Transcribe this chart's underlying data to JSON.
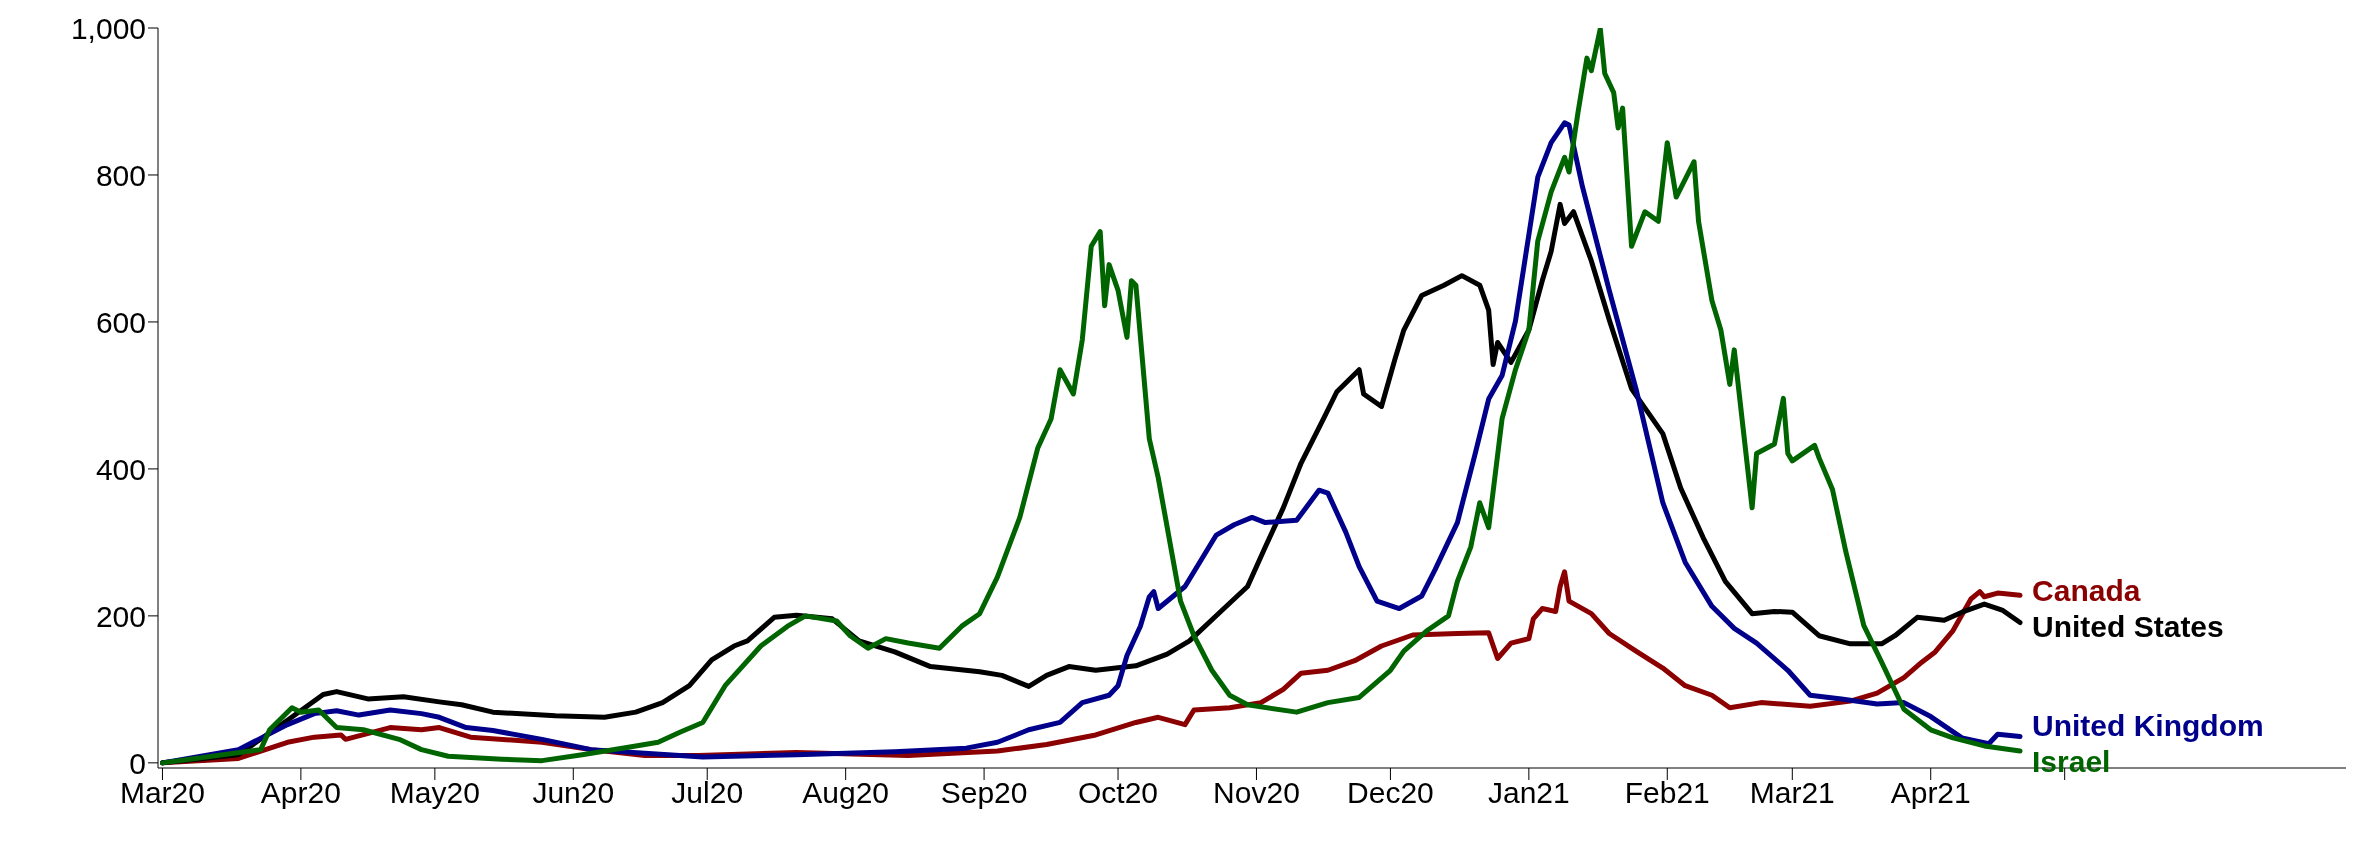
{
  "chart_data": {
    "type": "line",
    "xlim": [
      "2020-02-29",
      "2021-07-03"
    ],
    "xticks": [
      {
        "value": "2020-03-01",
        "label": "Mar20"
      },
      {
        "value": "2020-04-01",
        "label": "Apr20"
      },
      {
        "value": "2020-05-01",
        "label": "May20"
      },
      {
        "value": "2020-06-01",
        "label": "Jun20"
      },
      {
        "value": "2020-07-01",
        "label": "Jul20"
      },
      {
        "value": "2020-08-01",
        "label": "Aug20"
      },
      {
        "value": "2020-09-01",
        "label": "Sep20"
      },
      {
        "value": "2020-10-01",
        "label": "Oct20"
      },
      {
        "value": "2020-11-01",
        "label": "Nov20"
      },
      {
        "value": "2020-12-01",
        "label": "Dec20"
      },
      {
        "value": "2021-01-01",
        "label": "Jan21"
      },
      {
        "value": "2021-02-01",
        "label": "Feb21"
      },
      {
        "value": "2021-03-01",
        "label": "Mar21"
      },
      {
        "value": "2021-04-01",
        "label": "Apr21"
      },
      {
        "value": "2021-05-01",
        "label": null
      }
    ],
    "ylim": [
      -7,
      1000
    ],
    "yticks": [
      0,
      200,
      400,
      600,
      800,
      {
        "value": 1000,
        "label": "1,000"
      }
    ],
    "grid": false,
    "legend": false,
    "series": [
      {
        "name": "Canada",
        "color": "#8b0000",
        "x": [
          "2020-03-01",
          "2020-03-18",
          "2020-03-29",
          "2020-04-04",
          "2020-04-10",
          "2020-04-11",
          "2020-04-21",
          "2020-04-28",
          "2020-05-02",
          "2020-05-09",
          "2020-05-25",
          "2020-06-05",
          "2020-06-17",
          "2020-06-29",
          "2020-07-21",
          "2020-08-15",
          "2020-09-04",
          "2020-09-15",
          "2020-09-26",
          "2020-10-05",
          "2020-10-10",
          "2020-10-16",
          "2020-10-18",
          "2020-10-26",
          "2020-11-02",
          "2020-11-07",
          "2020-11-11",
          "2020-11-17",
          "2020-11-23",
          "2020-11-29",
          "2020-12-06",
          "2020-12-16",
          "2020-12-23",
          "2020-12-25",
          "2020-12-28",
          "2021-01-01",
          "2021-01-02",
          "2021-01-04",
          "2021-01-07",
          "2021-01-08",
          "2021-01-09",
          "2021-01-10",
          "2021-01-15",
          "2021-01-19",
          "2021-01-25",
          "2021-01-31",
          "2021-02-05",
          "2021-02-11",
          "2021-02-15",
          "2021-02-22",
          "2021-03-05",
          "2021-03-14",
          "2021-03-20",
          "2021-03-26",
          "2021-03-30",
          "2021-04-02",
          "2021-04-06",
          "2021-04-10",
          "2021-04-12",
          "2021-04-13",
          "2021-04-16",
          "2021-04-21"
        ],
        "values": [
          0,
          6,
          28,
          35,
          38,
          32,
          48,
          45,
          48,
          35,
          28,
          18,
          10,
          10,
          14,
          10,
          16,
          25,
          38,
          55,
          62,
          52,
          72,
          75,
          82,
          100,
          122,
          126,
          139,
          159,
          174,
          176,
          177,
          142,
          163,
          169,
          196,
          210,
          206,
          240,
          260,
          220,
          203,
          176,
          152,
          129,
          105,
          92,
          75,
          82,
          77,
          84,
          95,
          116,
          137,
          151,
          180,
          223,
          233,
          226,
          231,
          228
        ]
      },
      {
        "name": "United States",
        "color": "#000000",
        "x": [
          "2020-03-01",
          "2020-03-18",
          "2020-03-29",
          "2020-04-06",
          "2020-04-09",
          "2020-04-16",
          "2020-04-24",
          "2020-05-02",
          "2020-05-07",
          "2020-05-14",
          "2020-05-28",
          "2020-06-08",
          "2020-06-15",
          "2020-06-21",
          "2020-06-27",
          "2020-07-02",
          "2020-07-07",
          "2020-07-10",
          "2020-07-16",
          "2020-07-21",
          "2020-07-29",
          "2020-08-04",
          "2020-08-12",
          "2020-08-20",
          "2020-08-31",
          "2020-09-05",
          "2020-09-11",
          "2020-09-15",
          "2020-09-20",
          "2020-09-26",
          "2020-10-05",
          "2020-10-12",
          "2020-10-17",
          "2020-10-24",
          "2020-10-30",
          "2020-11-03",
          "2020-11-07",
          "2020-11-11",
          "2020-11-16",
          "2020-11-19",
          "2020-11-24",
          "2020-11-25",
          "2020-11-29",
          "2020-12-02",
          "2020-12-04",
          "2020-12-08",
          "2020-12-13",
          "2020-12-17",
          "2020-12-21",
          "2020-12-23",
          "2020-12-24",
          "2020-12-25",
          "2020-12-28",
          "2021-01-01",
          "2021-01-04",
          "2021-01-06",
          "2021-01-08",
          "2021-01-09",
          "2021-01-11",
          "2021-01-15",
          "2021-01-19",
          "2021-01-24",
          "2021-01-31",
          "2021-02-04",
          "2021-02-09",
          "2021-02-14",
          "2021-02-20",
          "2021-02-25",
          "2021-03-01",
          "2021-03-07",
          "2021-03-14",
          "2021-03-21",
          "2021-03-24",
          "2021-03-29",
          "2021-04-04",
          "2021-04-08",
          "2021-04-13",
          "2021-04-17",
          "2021-04-21"
        ],
        "values": [
          0,
          11,
          58,
          93,
          97,
          87,
          90,
          83,
          79,
          69,
          64,
          62,
          69,
          82,
          105,
          140,
          159,
          166,
          198,
          201,
          196,
          166,
          151,
          131,
          124,
          119,
          104,
          119,
          131,
          126,
          132,
          148,
          166,
          206,
          240,
          294,
          347,
          408,
          468,
          505,
          535,
          502,
          485,
          549,
          589,
          636,
          650,
          663,
          650,
          616,
          542,
          572,
          545,
          589,
          656,
          696,
          760,
          734,
          750,
          683,
          603,
          509,
          448,
          374,
          307,
          247,
          203,
          206,
          205,
          173,
          162,
          162,
          173,
          198,
          194,
          205,
          216,
          208,
          191
        ]
      },
      {
        "name": "United Kingdom",
        "color": "#00008b",
        "x": [
          "2020-03-01",
          "2020-03-18",
          "2020-03-29",
          "2020-04-04",
          "2020-04-09",
          "2020-04-14",
          "2020-04-21",
          "2020-04-28",
          "2020-05-02",
          "2020-05-08",
          "2020-05-14",
          "2020-05-25",
          "2020-06-05",
          "2020-06-17",
          "2020-06-30",
          "2020-07-21",
          "2020-08-12",
          "2020-08-28",
          "2020-09-04",
          "2020-09-11",
          "2020-09-18",
          "2020-09-23",
          "2020-09-29",
          "2020-10-01",
          "2020-10-03",
          "2020-10-06",
          "2020-10-08",
          "2020-10-09",
          "2020-10-10",
          "2020-10-16",
          "2020-10-23",
          "2020-10-27",
          "2020-10-31",
          "2020-11-03",
          "2020-11-10",
          "2020-11-15",
          "2020-11-17",
          "2020-11-21",
          "2020-11-24",
          "2020-11-28",
          "2020-12-03",
          "2020-12-08",
          "2020-12-11",
          "2020-12-16",
          "2020-12-20",
          "2020-12-23",
          "2020-12-26",
          "2020-12-29",
          "2021-01-03",
          "2021-01-06",
          "2021-01-09",
          "2021-01-10",
          "2021-01-13",
          "2021-01-19",
          "2021-01-25",
          "2021-01-31",
          "2021-02-05",
          "2021-02-11",
          "2021-02-16",
          "2021-02-21",
          "2021-02-28",
          "2021-03-05",
          "2021-03-12",
          "2021-03-20",
          "2021-03-26",
          "2021-04-01",
          "2021-04-08",
          "2021-04-14",
          "2021-04-16",
          "2021-04-21"
        ],
        "values": [
          0,
          18,
          52,
          67,
          71,
          65,
          72,
          67,
          62,
          48,
          44,
          32,
          18,
          13,
          8,
          11,
          15,
          20,
          28,
          45,
          55,
          82,
          92,
          105,
          146,
          186,
          226,
          233,
          210,
          240,
          310,
          324,
          334,
          327,
          330,
          371,
          367,
          314,
          267,
          220,
          210,
          227,
          263,
          327,
          421,
          495,
          527,
          601,
          797,
          844,
          871,
          868,
          784,
          643,
          509,
          354,
          273,
          213,
          183,
          163,
          126,
          92,
          87,
          80,
          82,
          63,
          34,
          26,
          39,
          36
        ]
      },
      {
        "name": "Israel",
        "color": "#006400",
        "x": [
          "2020-03-01",
          "2020-03-23",
          "2020-03-25",
          "2020-03-30",
          "2020-04-01",
          "2020-04-05",
          "2020-04-09",
          "2020-04-15",
          "2020-04-23",
          "2020-04-28",
          "2020-05-04",
          "2020-05-16",
          "2020-05-25",
          "2020-06-03",
          "2020-06-13",
          "2020-06-20",
          "2020-06-25",
          "2020-06-30",
          "2020-07-05",
          "2020-07-13",
          "2020-07-19",
          "2020-07-23",
          "2020-07-30",
          "2020-08-02",
          "2020-08-06",
          "2020-08-10",
          "2020-08-15",
          "2020-08-22",
          "2020-08-27",
          "2020-08-31",
          "2020-09-04",
          "2020-09-09",
          "2020-09-13",
          "2020-09-16",
          "2020-09-18",
          "2020-09-21",
          "2020-09-23",
          "2020-09-25",
          "2020-09-27",
          "2020-09-28",
          "2020-09-29",
          "2020-10-01",
          "2020-10-03",
          "2020-10-04",
          "2020-10-05",
          "2020-10-08",
          "2020-10-10",
          "2020-10-15",
          "2020-10-18",
          "2020-10-22",
          "2020-10-26",
          "2020-10-30",
          "2020-11-10",
          "2020-11-17",
          "2020-11-24",
          "2020-12-01",
          "2020-12-04",
          "2020-12-09",
          "2020-12-14",
          "2020-12-16",
          "2020-12-19",
          "2020-12-21",
          "2020-12-23",
          "2020-12-26",
          "2020-12-29",
          "2021-01-01",
          "2021-01-03",
          "2021-01-06",
          "2021-01-09",
          "2021-01-10",
          "2021-01-12",
          "2021-01-14",
          "2021-01-15",
          "2021-01-17",
          "2021-01-18",
          "2021-01-20",
          "2021-01-21",
          "2021-01-22",
          "2021-01-24",
          "2021-01-27",
          "2021-01-30",
          "2021-02-01",
          "2021-02-03",
          "2021-02-07",
          "2021-02-08",
          "2021-02-11",
          "2021-02-13",
          "2021-02-15",
          "2021-02-16",
          "2021-02-20",
          "2021-02-21",
          "2021-02-25",
          "2021-02-27",
          "2021-02-28",
          "2021-03-01",
          "2021-03-06",
          "2021-03-07",
          "2021-03-10",
          "2021-03-13",
          "2021-03-17",
          "2021-03-21",
          "2021-03-26",
          "2021-04-01",
          "2021-04-06",
          "2021-04-13",
          "2021-04-21"
        ],
        "values": [
          0,
          18,
          45,
          75,
          69,
          72,
          48,
          45,
          32,
          18,
          9,
          5,
          3,
          11,
          21,
          28,
          42,
          55,
          105,
          159,
          186,
          200,
          193,
          173,
          156,
          169,
          163,
          156,
          186,
          203,
          253,
          334,
          428,
          468,
          535,
          502,
          576,
          703,
          723,
          622,
          678,
          643,
          579,
          656,
          650,
          441,
          388,
          220,
          173,
          126,
          92,
          79,
          69,
          82,
          89,
          126,
          152,
          179,
          200,
          247,
          294,
          354,
          320,
          468,
          535,
          589,
          710,
          777,
          824,
          804,
          885,
          959,
          942,
          999,
          938,
          912,
          864,
          891,
          703,
          750,
          737,
          844,
          770,
          818,
          737,
          629,
          589,
          515,
          562,
          347,
          421,
          434,
          496,
          421,
          411,
          432,
          415,
          372,
          287,
          187,
          137,
          73,
          45,
          34,
          23,
          16
        ]
      }
    ]
  }
}
